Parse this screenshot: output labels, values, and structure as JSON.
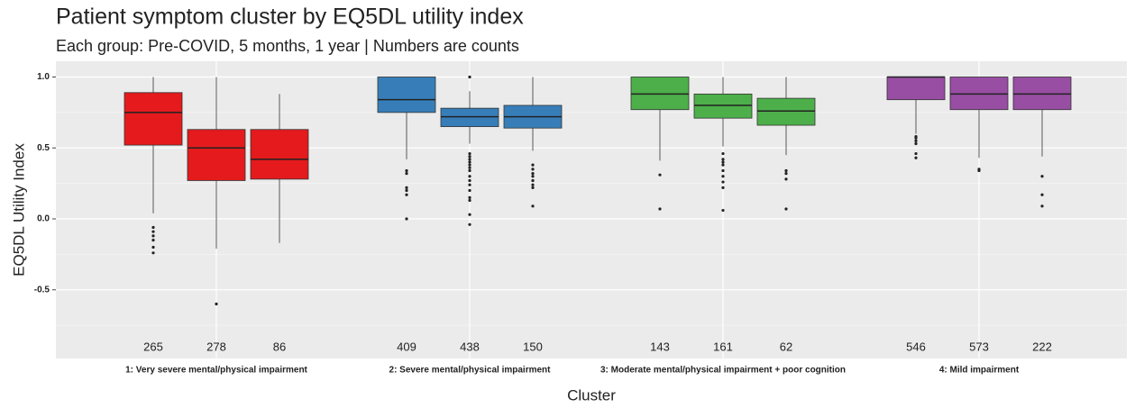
{
  "chart_data": {
    "type": "box",
    "title": "Patient symptom cluster by EQ5DL utility index",
    "subtitle": "Each group: Pre-COVID, 5 months, 1 year | Numbers are counts",
    "y_label": "EQ5DL Utility Index",
    "x_label": "Cluster",
    "ylim": [
      -0.984,
      1.111
    ],
    "yticks": [
      {
        "value": 1.0,
        "label": "1.0"
      },
      {
        "value": 0.5,
        "label": "0.5"
      },
      {
        "value": 0.0,
        "label": "0.0"
      },
      {
        "value": -0.5,
        "label": "-0.5"
      }
    ],
    "minor_grid": [
      0.75,
      0.25,
      -0.25,
      -0.75
    ],
    "grid": true,
    "groups": [
      {
        "label": "1: Very severe mental/physical impairment",
        "color": "#e41a1c",
        "boxes": [
          {
            "count": 265,
            "whisker_low": 0.04,
            "q1": 0.52,
            "median": 0.75,
            "q3": 0.89,
            "whisker_high": 1.0,
            "outliers": [
              -0.06,
              -0.09,
              -0.12,
              -0.15,
              -0.2,
              -0.24
            ]
          },
          {
            "count": 278,
            "whisker_low": -0.21,
            "q1": 0.27,
            "median": 0.5,
            "q3": 0.63,
            "whisker_high": 1.0,
            "outliers": [
              -0.6
            ]
          },
          {
            "count": 86,
            "whisker_low": -0.17,
            "q1": 0.28,
            "median": 0.42,
            "q3": 0.63,
            "whisker_high": 0.88,
            "outliers": []
          }
        ]
      },
      {
        "label": "2: Severe mental/physical impairment",
        "color": "#377eb8",
        "boxes": [
          {
            "count": 409,
            "whisker_low": 0.42,
            "q1": 0.75,
            "median": 0.84,
            "q3": 1.0,
            "whisker_high": 1.0,
            "outliers": [
              0.34,
              0.32,
              0.22,
              0.2,
              0.17,
              0.0
            ]
          },
          {
            "count": 438,
            "whisker_low": 0.53,
            "q1": 0.65,
            "median": 0.72,
            "q3": 0.78,
            "whisker_high": 0.9,
            "outliers": [
              1.0,
              0.46,
              0.44,
              0.42,
              0.4,
              0.38,
              0.36,
              0.34,
              0.3,
              0.27,
              0.24,
              0.2,
              0.15,
              0.13,
              0.03,
              -0.04
            ]
          },
          {
            "count": 150,
            "whisker_low": 0.48,
            "q1": 0.64,
            "median": 0.72,
            "q3": 0.8,
            "whisker_high": 1.0,
            "outliers": [
              0.38,
              0.35,
              0.32,
              0.3,
              0.27,
              0.24,
              0.22,
              0.09
            ]
          }
        ]
      },
      {
        "label": "3: Moderate mental/physical impairment + poor cognition",
        "color": "#4daf4a",
        "boxes": [
          {
            "count": 143,
            "whisker_low": 0.41,
            "q1": 0.77,
            "median": 0.88,
            "q3": 1.0,
            "whisker_high": 1.0,
            "outliers": [
              0.31,
              0.07
            ]
          },
          {
            "count": 161,
            "whisker_low": 0.51,
            "q1": 0.71,
            "median": 0.8,
            "q3": 0.88,
            "whisker_high": 1.0,
            "outliers": [
              0.46,
              0.42,
              0.4,
              0.38,
              0.34,
              0.3,
              0.26,
              0.22,
              0.06
            ]
          },
          {
            "count": 62,
            "whisker_low": 0.45,
            "q1": 0.66,
            "median": 0.76,
            "q3": 0.85,
            "whisker_high": 1.0,
            "outliers": [
              0.34,
              0.32,
              0.28,
              0.07
            ]
          }
        ]
      },
      {
        "label": "4: Mild impairment",
        "color": "#984ea3",
        "boxes": [
          {
            "count": 546,
            "whisker_low": 0.6,
            "q1": 0.84,
            "median": 1.0,
            "q3": 1.0,
            "whisker_high": 1.0,
            "outliers": [
              0.58,
              0.57,
              0.55,
              0.53,
              0.46,
              0.43
            ]
          },
          {
            "count": 573,
            "whisker_low": 0.43,
            "q1": 0.77,
            "median": 0.88,
            "q3": 1.0,
            "whisker_high": 1.0,
            "outliers": [
              0.35,
              0.34
            ]
          },
          {
            "count": 222,
            "whisker_low": 0.44,
            "q1": 0.77,
            "median": 0.88,
            "q3": 1.0,
            "whisker_high": 1.0,
            "outliers": [
              0.3,
              0.17,
              0.09
            ]
          }
        ]
      }
    ]
  }
}
